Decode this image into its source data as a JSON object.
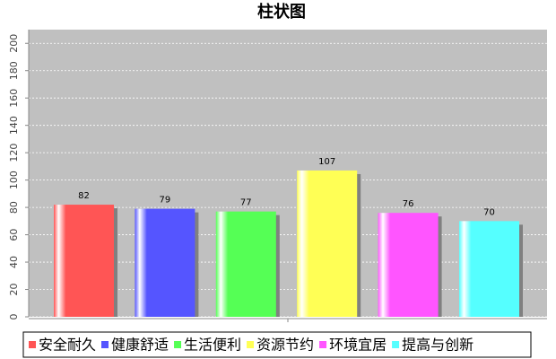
{
  "chart_data": {
    "type": "bar",
    "title": "柱状图",
    "categories": [
      null
    ],
    "series": [
      {
        "name": "安全耐久",
        "color": "#ff5555",
        "values": [
          82
        ]
      },
      {
        "name": "健康舒适",
        "color": "#5555ff",
        "values": [
          79
        ]
      },
      {
        "name": "生活便利",
        "color": "#55ff55",
        "values": [
          77
        ]
      },
      {
        "name": "资源节约",
        "color": "#ffff55",
        "values": [
          107
        ]
      },
      {
        "name": "环境宜居",
        "color": "#ff55ff",
        "values": [
          76
        ]
      },
      {
        "name": "提高与创新",
        "color": "#55ffff",
        "values": [
          70
        ]
      }
    ],
    "ylim": [
      0,
      210
    ],
    "yticks": [
      0,
      20,
      40,
      60,
      80,
      100,
      120,
      140,
      160,
      180,
      200
    ],
    "grid": true,
    "legend": "bottom"
  }
}
